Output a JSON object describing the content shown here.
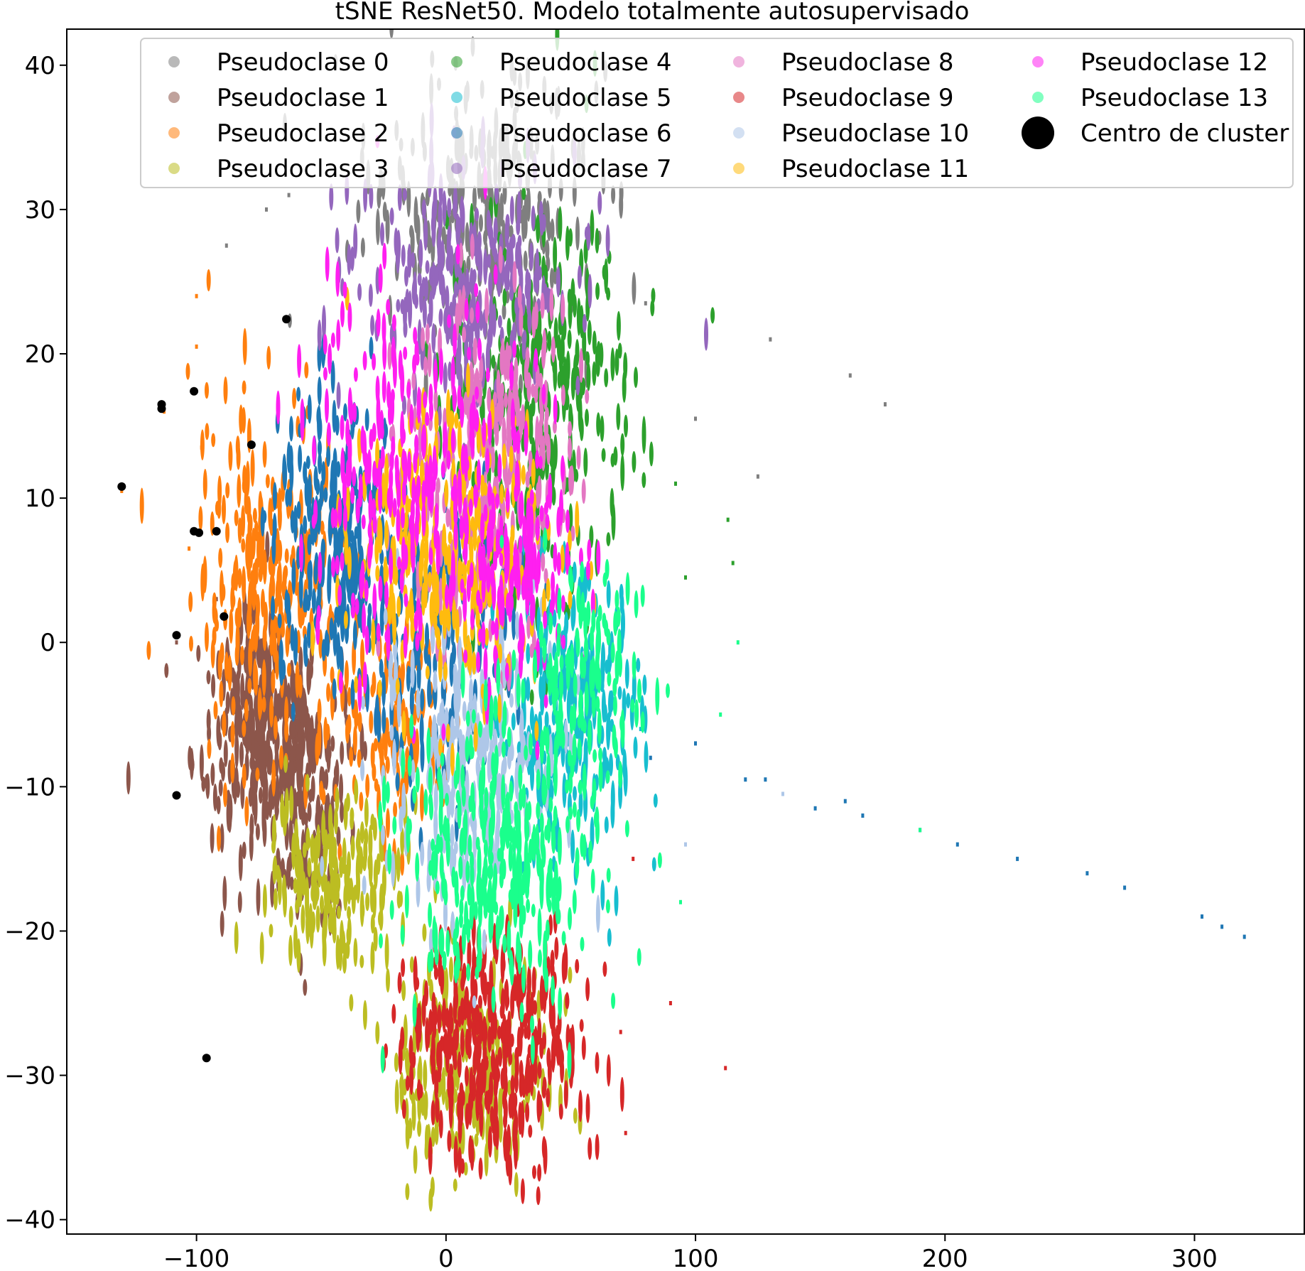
{
  "chart_data": {
    "type": "scatter",
    "title": "tSNE ResNet50. Modelo totalmente autosupervisado",
    "xlabel": "",
    "ylabel": "",
    "xlim": [
      -152,
      344
    ],
    "ylim": [
      -41,
      42.5
    ],
    "xticks": [
      -100,
      0,
      100,
      200,
      300
    ],
    "yticks": [
      -40,
      -30,
      -20,
      -10,
      0,
      10,
      20,
      30,
      40
    ],
    "xtick_labels": [
      "−100",
      "0",
      "100",
      "200",
      "300"
    ],
    "ytick_labels": [
      "−40",
      "−30",
      "−20",
      "−10",
      "0",
      "10",
      "20",
      "30",
      "40"
    ],
    "grid": false,
    "legend_position": "top",
    "legend_columns": 4,
    "series": [
      {
        "name": "Pseudoclase 0",
        "color": "#7f7f7f",
        "regions": [
          {
            "cx": 12,
            "cy": 30,
            "sx": 22,
            "sy": 5,
            "n": 260
          }
        ],
        "stragglers": [
          [
            -72,
            30
          ],
          [
            -63,
            31
          ],
          [
            -88,
            27.5
          ],
          [
            80,
            23.5
          ],
          [
            130,
            21
          ],
          [
            162,
            18.5
          ],
          [
            176,
            16.5
          ],
          [
            100,
            15.5
          ],
          [
            125,
            11.5
          ]
        ]
      },
      {
        "name": "Pseudoclase 1",
        "color": "#8c564b",
        "regions": [
          {
            "cx": -75,
            "cy": -6,
            "sx": 13,
            "sy": 4,
            "n": 320
          },
          {
            "cx": -55,
            "cy": -11,
            "sx": 10,
            "sy": 4,
            "n": 120
          }
        ],
        "stragglers": [
          [
            -108,
            0
          ],
          [
            -92,
            3
          ]
        ]
      },
      {
        "name": "Pseudoclase 2",
        "color": "#ff7f0e",
        "regions": [
          {
            "cx": -72,
            "cy": 4,
            "sx": 15,
            "sy": 6,
            "n": 260
          },
          {
            "cx": -20,
            "cy": -5,
            "sx": 12,
            "sy": 4,
            "n": 140
          }
        ],
        "stragglers": [
          [
            -130,
            10.5
          ],
          [
            -113,
            16
          ],
          [
            -100,
            20.5
          ],
          [
            -100,
            24
          ],
          [
            -98,
            13.5
          ],
          [
            -103,
            6.5
          ]
        ]
      },
      {
        "name": "Pseudoclase 3",
        "color": "#bcbd22",
        "regions": [
          {
            "cx": -45,
            "cy": -17,
            "sx": 13,
            "sy": 3,
            "n": 180
          },
          {
            "cx": 10,
            "cy": -30,
            "sx": 16,
            "sy": 4,
            "n": 240
          }
        ],
        "stragglers": []
      },
      {
        "name": "Pseudoclase 4",
        "color": "#2ca02c",
        "regions": [
          {
            "cx": 38,
            "cy": 17,
            "sx": 18,
            "sy": 7,
            "n": 320
          }
        ],
        "stragglers": [
          [
            92,
            11
          ],
          [
            113,
            8.5
          ],
          [
            115,
            5.5
          ],
          [
            96,
            4.5
          ]
        ]
      },
      {
        "name": "Pseudoclase 5",
        "color": "#17becf",
        "regions": [
          {
            "cx": 50,
            "cy": -5,
            "sx": 14,
            "sy": 5,
            "n": 240
          }
        ],
        "stragglers": [
          [
            78,
            -6
          ]
        ]
      },
      {
        "name": "Pseudoclase 6",
        "color": "#1f77b4",
        "regions": [
          {
            "cx": -45,
            "cy": 7,
            "sx": 12,
            "sy": 5,
            "n": 240
          },
          {
            "cx": -5,
            "cy": 0,
            "sx": 15,
            "sy": 5,
            "n": 140
          }
        ],
        "stragglers": [
          [
            100,
            -7
          ],
          [
            82,
            -8
          ],
          [
            120,
            -9.5
          ],
          [
            128,
            -9.5
          ],
          [
            148,
            -11.5
          ],
          [
            160,
            -11
          ],
          [
            167,
            -12
          ],
          [
            190,
            -13
          ],
          [
            205,
            -14
          ],
          [
            229,
            -15
          ],
          [
            257,
            -16
          ],
          [
            272,
            -17
          ],
          [
            303,
            -19
          ],
          [
            311,
            -19.7
          ],
          [
            320,
            -20.4
          ]
        ]
      },
      {
        "name": "Pseudoclase 7",
        "color": "#9467bd",
        "regions": [
          {
            "cx": 10,
            "cy": 25,
            "sx": 22,
            "sy": 4,
            "n": 260
          }
        ],
        "stragglers": []
      },
      {
        "name": "Pseudoclase 8",
        "color": "#e377c2",
        "regions": [
          {
            "cx": 15,
            "cy": 12,
            "sx": 18,
            "sy": 6,
            "n": 300
          }
        ],
        "stragglers": []
      },
      {
        "name": "Pseudoclase 9",
        "color": "#d62728",
        "regions": [
          {
            "cx": 18,
            "cy": -28,
            "sx": 18,
            "sy": 4,
            "n": 360
          }
        ],
        "stragglers": [
          [
            70,
            -27
          ],
          [
            90,
            -25
          ],
          [
            112,
            -29.5
          ],
          [
            72,
            -34
          ],
          [
            75,
            -15
          ]
        ]
      },
      {
        "name": "Pseudoclase 10",
        "color": "#aec7e8",
        "regions": [
          {
            "cx": 10,
            "cy": -8,
            "sx": 18,
            "sy": 5,
            "n": 260
          }
        ],
        "stragglers": [
          [
            135,
            -10.5
          ],
          [
            96,
            -14
          ]
        ]
      },
      {
        "name": "Pseudoclase 11",
        "color": "#ffbb0e",
        "regions": [
          {
            "cx": 0,
            "cy": 6,
            "sx": 20,
            "sy": 5,
            "n": 280
          }
        ],
        "stragglers": []
      },
      {
        "name": "Pseudoclase 12",
        "color": "#ff1ff0",
        "regions": [
          {
            "cx": -15,
            "cy": 12,
            "sx": 22,
            "sy": 6,
            "n": 260
          },
          {
            "cx": 28,
            "cy": 5,
            "sx": 14,
            "sy": 4,
            "n": 140
          }
        ],
        "stragglers": []
      },
      {
        "name": "Pseudoclase 13",
        "color": "#1aff8c",
        "regions": [
          {
            "cx": 20,
            "cy": -15,
            "sx": 20,
            "sy": 5,
            "n": 320
          },
          {
            "cx": 55,
            "cy": -3,
            "sx": 12,
            "sy": 4,
            "n": 120
          }
        ],
        "stragglers": [
          [
            117,
            0
          ],
          [
            110,
            -5
          ],
          [
            94,
            -18
          ],
          [
            190,
            -13
          ]
        ]
      }
    ],
    "centers": {
      "name": "Centro de cluster",
      "color": "#000000",
      "points": [
        [
          -130,
          10.8
        ],
        [
          -114,
          16.5
        ],
        [
          -114,
          16.2
        ],
        [
          -101,
          17.4
        ],
        [
          -101,
          7.7
        ],
        [
          -99,
          7.6
        ],
        [
          -92,
          7.7
        ],
        [
          -89,
          1.8
        ],
        [
          -108,
          0.5
        ],
        [
          -78,
          13.7
        ],
        [
          -64,
          22.4
        ],
        [
          -108,
          -10.6
        ],
        [
          -96,
          -28.8
        ]
      ]
    }
  }
}
